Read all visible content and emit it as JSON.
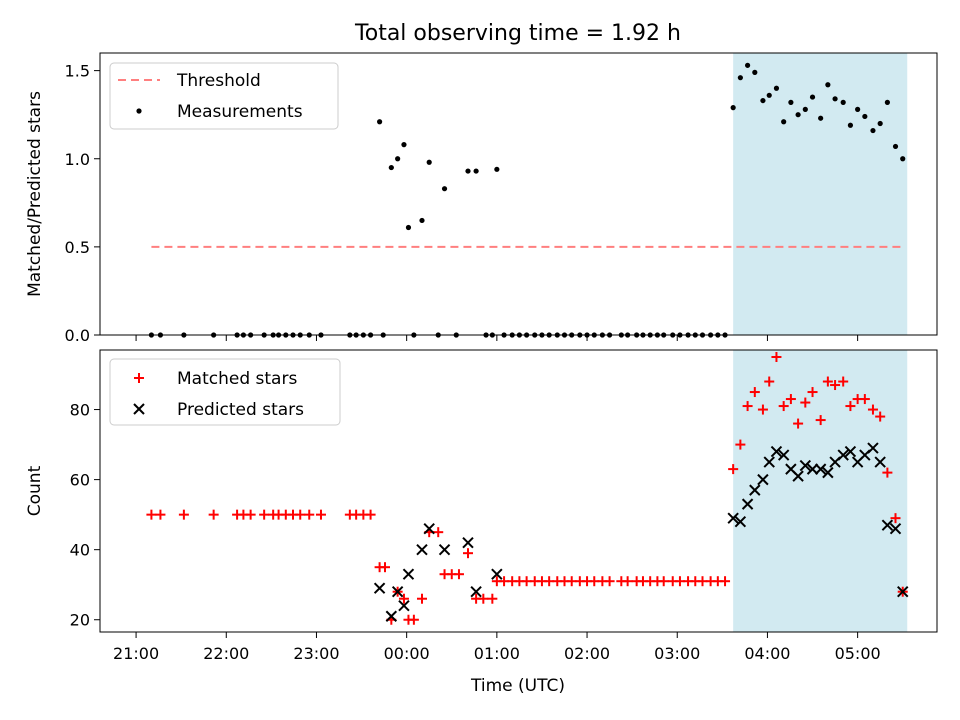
{
  "chart_data": {
    "title": "Total observing time = 1.92 h",
    "xlabel": "Time (UTC)",
    "x_unit": "hours since 21:00 UTC",
    "x_range": [
      -0.4,
      8.88
    ],
    "x_ticks": [
      {
        "value": 0,
        "label": "21:00"
      },
      {
        "value": 1,
        "label": "22:00"
      },
      {
        "value": 2,
        "label": "23:00"
      },
      {
        "value": 3,
        "label": "00:00"
      },
      {
        "value": 4,
        "label": "01:00"
      },
      {
        "value": 5,
        "label": "02:00"
      },
      {
        "value": 6,
        "label": "03:00"
      },
      {
        "value": 7,
        "label": "04:00"
      },
      {
        "value": 8,
        "label": "05:00"
      }
    ],
    "shaded_region": {
      "x_start": 6.62,
      "x_end": 8.55,
      "color": "#add8e6"
    },
    "panels": [
      {
        "name": "ratio",
        "type": "scatter",
        "ylabel": "Matched/Predicted stars",
        "ylim": [
          0,
          1.6
        ],
        "yticks": [
          {
            "value": 0,
            "label": "0.0"
          },
          {
            "value": 0.5,
            "label": "0.5"
          },
          {
            "value": 1,
            "label": "1.0"
          },
          {
            "value": 1.5,
            "label": "1.5"
          }
        ],
        "legend": {
          "placement": "upper-left",
          "entries": [
            {
              "label": "Threshold",
              "style": "dashed-line",
              "color": "#ff7f7f"
            },
            {
              "label": "Measurements",
              "style": "dot",
              "color": "#000000"
            }
          ]
        },
        "threshold": {
          "value": 0.5,
          "x_start": 0.17,
          "x_end": 8.5,
          "color": "#ff7f7f"
        },
        "measurements": [
          [
            0.17,
            0
          ],
          [
            0.27,
            0
          ],
          [
            0.53,
            0
          ],
          [
            0.86,
            0
          ],
          [
            1.12,
            0
          ],
          [
            1.19,
            0
          ],
          [
            1.27,
            0
          ],
          [
            1.42,
            0
          ],
          [
            1.52,
            0
          ],
          [
            1.58,
            0
          ],
          [
            1.66,
            0
          ],
          [
            1.74,
            0
          ],
          [
            1.82,
            0
          ],
          [
            1.92,
            0
          ],
          [
            2.05,
            0
          ],
          [
            2.37,
            0
          ],
          [
            2.44,
            0
          ],
          [
            2.52,
            0
          ],
          [
            2.6,
            0
          ],
          [
            2.74,
            0
          ],
          [
            2.7,
            1.21
          ],
          [
            2.83,
            0.95
          ],
          [
            2.9,
            1.0
          ],
          [
            2.97,
            1.08
          ],
          [
            3.02,
            0.61
          ],
          [
            3.08,
            0
          ],
          [
            3.17,
            0.65
          ],
          [
            3.25,
            0.98
          ],
          [
            3.35,
            0
          ],
          [
            3.42,
            0.83
          ],
          [
            3.55,
            0
          ],
          [
            3.68,
            0.93
          ],
          [
            3.77,
            0.93
          ],
          [
            3.88,
            0
          ],
          [
            3.95,
            0
          ],
          [
            4.0,
            0.94
          ],
          [
            4.08,
            0
          ],
          [
            4.17,
            0
          ],
          [
            4.25,
            0
          ],
          [
            4.33,
            0
          ],
          [
            4.42,
            0
          ],
          [
            4.5,
            0
          ],
          [
            4.58,
            0
          ],
          [
            4.67,
            0
          ],
          [
            4.75,
            0
          ],
          [
            4.83,
            0
          ],
          [
            4.92,
            0
          ],
          [
            5.0,
            0
          ],
          [
            5.08,
            0
          ],
          [
            5.17,
            0
          ],
          [
            5.25,
            0
          ],
          [
            5.38,
            0
          ],
          [
            5.45,
            0
          ],
          [
            5.55,
            0
          ],
          [
            5.62,
            0
          ],
          [
            5.7,
            0
          ],
          [
            5.78,
            0
          ],
          [
            5.85,
            0
          ],
          [
            5.95,
            0
          ],
          [
            6.03,
            0
          ],
          [
            6.12,
            0
          ],
          [
            6.2,
            0
          ],
          [
            6.28,
            0
          ],
          [
            6.37,
            0
          ],
          [
            6.45,
            0
          ],
          [
            6.53,
            0
          ],
          [
            6.62,
            1.29
          ],
          [
            6.7,
            1.46
          ],
          [
            6.78,
            1.53
          ],
          [
            6.86,
            1.49
          ],
          [
            6.95,
            1.33
          ],
          [
            7.02,
            1.36
          ],
          [
            7.1,
            1.4
          ],
          [
            7.18,
            1.21
          ],
          [
            7.26,
            1.32
          ],
          [
            7.34,
            1.25
          ],
          [
            7.42,
            1.28
          ],
          [
            7.5,
            1.35
          ],
          [
            7.59,
            1.23
          ],
          [
            7.67,
            1.42
          ],
          [
            7.75,
            1.34
          ],
          [
            7.84,
            1.32
          ],
          [
            7.92,
            1.19
          ],
          [
            8.0,
            1.28
          ],
          [
            8.08,
            1.24
          ],
          [
            8.17,
            1.16
          ],
          [
            8.25,
            1.2
          ],
          [
            8.33,
            1.32
          ],
          [
            8.42,
            1.07
          ],
          [
            8.5,
            1.0
          ]
        ]
      },
      {
        "name": "counts",
        "type": "scatter",
        "ylabel": "Count",
        "ylim": [
          16.5,
          97
        ],
        "yticks": [
          {
            "value": 20,
            "label": "20"
          },
          {
            "value": 40,
            "label": "40"
          },
          {
            "value": 60,
            "label": "60"
          },
          {
            "value": 80,
            "label": "80"
          }
        ],
        "legend": {
          "placement": "upper-left",
          "entries": [
            {
              "label": "Matched stars",
              "style": "plus",
              "color": "#ff0000"
            },
            {
              "label": "Predicted stars",
              "style": "x",
              "color": "#000000"
            }
          ]
        },
        "series": [
          {
            "name": "Matched stars",
            "marker": "plus",
            "color": "#ff0000",
            "points": [
              [
                0.17,
                50
              ],
              [
                0.27,
                50
              ],
              [
                0.53,
                50
              ],
              [
                0.86,
                50
              ],
              [
                1.12,
                50
              ],
              [
                1.19,
                50
              ],
              [
                1.27,
                50
              ],
              [
                1.42,
                50
              ],
              [
                1.52,
                50
              ],
              [
                1.58,
                50
              ],
              [
                1.66,
                50
              ],
              [
                1.74,
                50
              ],
              [
                1.82,
                50
              ],
              [
                1.92,
                50
              ],
              [
                2.05,
                50
              ],
              [
                2.37,
                50
              ],
              [
                2.44,
                50
              ],
              [
                2.52,
                50
              ],
              [
                2.6,
                50
              ],
              [
                2.7,
                35
              ],
              [
                2.76,
                35
              ],
              [
                2.83,
                20
              ],
              [
                2.9,
                28
              ],
              [
                2.97,
                26
              ],
              [
                3.02,
                20
              ],
              [
                3.08,
                20
              ],
              [
                3.17,
                26
              ],
              [
                3.25,
                45
              ],
              [
                3.35,
                45
              ],
              [
                3.42,
                33
              ],
              [
                3.5,
                33
              ],
              [
                3.58,
                33
              ],
              [
                3.68,
                39
              ],
              [
                3.77,
                26
              ],
              [
                3.85,
                26
              ],
              [
                3.95,
                26
              ],
              [
                4.0,
                31
              ],
              [
                4.08,
                31
              ],
              [
                4.17,
                31
              ],
              [
                4.25,
                31
              ],
              [
                4.33,
                31
              ],
              [
                4.42,
                31
              ],
              [
                4.5,
                31
              ],
              [
                4.58,
                31
              ],
              [
                4.67,
                31
              ],
              [
                4.75,
                31
              ],
              [
                4.83,
                31
              ],
              [
                4.92,
                31
              ],
              [
                5.0,
                31
              ],
              [
                5.08,
                31
              ],
              [
                5.17,
                31
              ],
              [
                5.25,
                31
              ],
              [
                5.38,
                31
              ],
              [
                5.45,
                31
              ],
              [
                5.55,
                31
              ],
              [
                5.62,
                31
              ],
              [
                5.7,
                31
              ],
              [
                5.78,
                31
              ],
              [
                5.85,
                31
              ],
              [
                5.95,
                31
              ],
              [
                6.03,
                31
              ],
              [
                6.12,
                31
              ],
              [
                6.2,
                31
              ],
              [
                6.28,
                31
              ],
              [
                6.37,
                31
              ],
              [
                6.45,
                31
              ],
              [
                6.53,
                31
              ],
              [
                6.62,
                63
              ],
              [
                6.7,
                70
              ],
              [
                6.78,
                81
              ],
              [
                6.86,
                85
              ],
              [
                6.95,
                80
              ],
              [
                7.02,
                88
              ],
              [
                7.1,
                95
              ],
              [
                7.18,
                81
              ],
              [
                7.26,
                83
              ],
              [
                7.34,
                76
              ],
              [
                7.42,
                82
              ],
              [
                7.5,
                85
              ],
              [
                7.59,
                77
              ],
              [
                7.67,
                88
              ],
              [
                7.75,
                87
              ],
              [
                7.84,
                88
              ],
              [
                7.92,
                81
              ],
              [
                8.0,
                83
              ],
              [
                8.08,
                83
              ],
              [
                8.17,
                80
              ],
              [
                8.25,
                78
              ],
              [
                8.33,
                62
              ],
              [
                8.42,
                49
              ],
              [
                8.5,
                28
              ]
            ]
          },
          {
            "name": "Predicted stars",
            "marker": "x",
            "color": "#000000",
            "points": [
              [
                2.7,
                29
              ],
              [
                2.83,
                21
              ],
              [
                2.9,
                28
              ],
              [
                2.97,
                24
              ],
              [
                3.02,
                33
              ],
              [
                3.17,
                40
              ],
              [
                3.25,
                46
              ],
              [
                3.42,
                40
              ],
              [
                3.68,
                42
              ],
              [
                3.77,
                28
              ],
              [
                4.0,
                33
              ],
              [
                6.62,
                49
              ],
              [
                6.7,
                48
              ],
              [
                6.78,
                53
              ],
              [
                6.86,
                57
              ],
              [
                6.95,
                60
              ],
              [
                7.02,
                65
              ],
              [
                7.1,
                68
              ],
              [
                7.18,
                67
              ],
              [
                7.26,
                63
              ],
              [
                7.34,
                61
              ],
              [
                7.42,
                64
              ],
              [
                7.5,
                63
              ],
              [
                7.59,
                63
              ],
              [
                7.67,
                62
              ],
              [
                7.75,
                65
              ],
              [
                7.84,
                67
              ],
              [
                7.92,
                68
              ],
              [
                8.0,
                65
              ],
              [
                8.08,
                67
              ],
              [
                8.17,
                69
              ],
              [
                8.25,
                65
              ],
              [
                8.33,
                47
              ],
              [
                8.42,
                46
              ],
              [
                8.5,
                28
              ]
            ]
          }
        ]
      }
    ]
  }
}
